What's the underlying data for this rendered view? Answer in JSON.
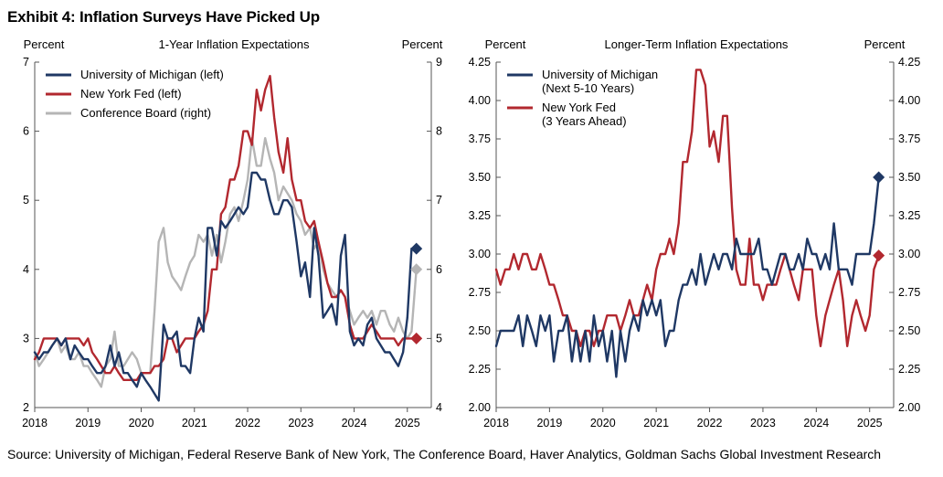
{
  "title": "Exhibit 4: Inflation Surveys Have Picked Up",
  "source": "Source: University of Michigan, Federal Reserve Bank of New York, The Conference Board, Haver Analytics, Goldman Sachs Global Investment Research",
  "chart_data": [
    {
      "type": "line",
      "title": "1-Year Inflation Expectations",
      "left_unit": "Percent",
      "right_unit": "Percent",
      "xlim": [
        2018,
        2025.45
      ],
      "x_ticks": [
        2018,
        2019,
        2020,
        2021,
        2022,
        2023,
        2024,
        2025
      ],
      "ylim_left": [
        2,
        7
      ],
      "ylim_right": [
        4,
        9
      ],
      "y_ticks_left": [
        2,
        3,
        4,
        5,
        6,
        7
      ],
      "y_ticks_right": [
        4,
        5,
        6,
        7,
        8,
        9
      ],
      "legend_position": "top-left",
      "colors": {
        "umich": "#1f3864",
        "nyfed": "#b2282f",
        "conf": "#b5b5b5"
      },
      "series": [
        {
          "name": "University of Michigan (left)",
          "axis": "left",
          "color": "#1f3864",
          "marker": {
            "x": 2025.17,
            "y": 4.3,
            "shape": "diamond"
          },
          "x": [
            2018.0,
            2018.08,
            2018.17,
            2018.25,
            2018.33,
            2018.42,
            2018.5,
            2018.58,
            2018.67,
            2018.75,
            2018.83,
            2018.92,
            2019.0,
            2019.08,
            2019.17,
            2019.25,
            2019.33,
            2019.42,
            2019.5,
            2019.58,
            2019.67,
            2019.75,
            2019.83,
            2019.92,
            2020.0,
            2020.08,
            2020.17,
            2020.25,
            2020.33,
            2020.42,
            2020.5,
            2020.58,
            2020.67,
            2020.75,
            2020.83,
            2020.92,
            2021.0,
            2021.08,
            2021.17,
            2021.25,
            2021.33,
            2021.42,
            2021.5,
            2021.58,
            2021.67,
            2021.75,
            2021.83,
            2021.92,
            2022.0,
            2022.08,
            2022.17,
            2022.25,
            2022.33,
            2022.42,
            2022.5,
            2022.58,
            2022.67,
            2022.75,
            2022.83,
            2022.92,
            2023.0,
            2023.08,
            2023.17,
            2023.25,
            2023.33,
            2023.42,
            2023.5,
            2023.58,
            2023.67,
            2023.75,
            2023.83,
            2023.92,
            2024.0,
            2024.08,
            2024.17,
            2024.25,
            2024.33,
            2024.42,
            2024.5,
            2024.58,
            2024.67,
            2024.75,
            2024.83,
            2024.92,
            2025.0,
            2025.08,
            2025.17
          ],
          "y": [
            2.8,
            2.7,
            2.8,
            2.8,
            2.9,
            3.0,
            2.9,
            3.0,
            2.7,
            2.9,
            2.8,
            2.7,
            2.7,
            2.6,
            2.5,
            2.5,
            2.6,
            2.9,
            2.6,
            2.8,
            2.5,
            2.5,
            2.4,
            2.3,
            2.5,
            2.4,
            2.3,
            2.2,
            2.1,
            3.2,
            3.0,
            3.0,
            3.1,
            2.6,
            2.6,
            2.5,
            3.0,
            3.3,
            3.1,
            4.6,
            4.6,
            4.2,
            4.7,
            4.6,
            4.7,
            4.8,
            4.9,
            4.8,
            4.9,
            5.4,
            5.4,
            5.3,
            5.3,
            5.0,
            4.8,
            4.8,
            5.0,
            5.0,
            4.9,
            4.4,
            3.9,
            4.1,
            3.6,
            4.6,
            4.2,
            3.3,
            3.4,
            3.5,
            3.2,
            4.2,
            4.5,
            3.1,
            2.9,
            3.0,
            2.9,
            3.2,
            3.3,
            3.0,
            2.9,
            2.8,
            2.8,
            2.7,
            2.6,
            2.8,
            3.3,
            4.3,
            4.3
          ]
        },
        {
          "name": "New York Fed (left)",
          "axis": "left",
          "color": "#b2282f",
          "marker": {
            "x": 2025.17,
            "y": 3.0,
            "shape": "diamond"
          },
          "x": [
            2018.0,
            2018.08,
            2018.17,
            2018.25,
            2018.33,
            2018.42,
            2018.5,
            2018.58,
            2018.67,
            2018.75,
            2018.83,
            2018.92,
            2019.0,
            2019.08,
            2019.17,
            2019.25,
            2019.33,
            2019.42,
            2019.5,
            2019.58,
            2019.67,
            2019.75,
            2019.83,
            2019.92,
            2020.0,
            2020.08,
            2020.17,
            2020.25,
            2020.33,
            2020.42,
            2020.5,
            2020.58,
            2020.67,
            2020.75,
            2020.83,
            2020.92,
            2021.0,
            2021.08,
            2021.17,
            2021.25,
            2021.33,
            2021.42,
            2021.5,
            2021.58,
            2021.67,
            2021.75,
            2021.83,
            2021.92,
            2022.0,
            2022.08,
            2022.17,
            2022.25,
            2022.33,
            2022.42,
            2022.5,
            2022.58,
            2022.67,
            2022.75,
            2022.83,
            2022.92,
            2023.0,
            2023.08,
            2023.17,
            2023.25,
            2023.33,
            2023.42,
            2023.5,
            2023.58,
            2023.67,
            2023.75,
            2023.83,
            2023.92,
            2024.0,
            2024.08,
            2024.17,
            2024.25,
            2024.33,
            2024.42,
            2024.5,
            2024.58,
            2024.67,
            2024.75,
            2024.83,
            2024.92,
            2025.0,
            2025.08,
            2025.17
          ],
          "y": [
            2.7,
            2.8,
            3.0,
            3.0,
            3.0,
            3.0,
            2.9,
            3.0,
            3.0,
            3.0,
            3.0,
            2.9,
            3.0,
            2.8,
            2.7,
            2.6,
            2.5,
            2.5,
            2.6,
            2.5,
            2.4,
            2.4,
            2.4,
            2.4,
            2.5,
            2.5,
            2.5,
            2.6,
            2.6,
            2.7,
            3.0,
            3.0,
            2.8,
            2.9,
            3.0,
            3.0,
            3.0,
            3.1,
            3.2,
            3.4,
            4.0,
            4.0,
            4.8,
            4.9,
            5.3,
            5.3,
            5.5,
            6.0,
            6.0,
            5.8,
            6.6,
            6.3,
            6.6,
            6.8,
            6.2,
            5.7,
            5.4,
            5.9,
            5.3,
            5.0,
            5.0,
            4.7,
            4.6,
            4.7,
            4.4,
            4.1,
            3.8,
            3.6,
            3.6,
            3.7,
            3.6,
            3.2,
            3.0,
            3.0,
            3.0,
            3.1,
            3.2,
            3.1,
            3.0,
            3.0,
            3.0,
            3.0,
            2.9,
            3.0,
            3.0,
            3.0,
            3.0
          ]
        },
        {
          "name": "Conference Board (right)",
          "axis": "right",
          "color": "#b5b5b5",
          "marker": {
            "x": 2025.17,
            "y": 6.0,
            "shape": "diamond"
          },
          "x": [
            2018.0,
            2018.08,
            2018.17,
            2018.25,
            2018.33,
            2018.42,
            2018.5,
            2018.58,
            2018.67,
            2018.75,
            2018.83,
            2018.92,
            2019.0,
            2019.08,
            2019.17,
            2019.25,
            2019.33,
            2019.42,
            2019.5,
            2019.58,
            2019.67,
            2019.75,
            2019.83,
            2019.92,
            2020.0,
            2020.08,
            2020.17,
            2020.25,
            2020.33,
            2020.42,
            2020.5,
            2020.58,
            2020.67,
            2020.75,
            2020.83,
            2020.92,
            2021.0,
            2021.08,
            2021.17,
            2021.25,
            2021.33,
            2021.42,
            2021.5,
            2021.58,
            2021.67,
            2021.75,
            2021.83,
            2021.92,
            2022.0,
            2022.08,
            2022.17,
            2022.25,
            2022.33,
            2022.42,
            2022.5,
            2022.58,
            2022.67,
            2022.75,
            2022.83,
            2022.92,
            2023.0,
            2023.08,
            2023.17,
            2023.25,
            2023.33,
            2023.42,
            2023.5,
            2023.58,
            2023.67,
            2023.75,
            2023.83,
            2023.92,
            2024.0,
            2024.08,
            2024.17,
            2024.25,
            2024.33,
            2024.42,
            2024.5,
            2024.58,
            2024.67,
            2024.75,
            2024.83,
            2024.92,
            2025.0,
            2025.08,
            2025.17
          ],
          "y": [
            4.8,
            4.6,
            4.7,
            4.8,
            4.9,
            5.0,
            4.8,
            4.9,
            4.7,
            4.7,
            4.8,
            4.6,
            4.6,
            4.5,
            4.4,
            4.3,
            4.6,
            4.7,
            5.1,
            4.6,
            4.6,
            4.7,
            4.8,
            4.7,
            4.5,
            4.5,
            4.5,
            5.4,
            6.4,
            6.6,
            6.1,
            5.9,
            5.8,
            5.7,
            5.9,
            6.1,
            6.2,
            6.5,
            6.4,
            6.5,
            6.2,
            6.5,
            6.1,
            6.4,
            6.8,
            6.9,
            6.7,
            7.0,
            7.3,
            7.9,
            7.5,
            7.5,
            7.9,
            7.6,
            7.4,
            7.0,
            7.2,
            7.1,
            7.0,
            6.8,
            6.7,
            6.5,
            6.6,
            6.3,
            6.4,
            6.0,
            5.8,
            5.7,
            5.6,
            5.7,
            5.6,
            5.4,
            5.2,
            5.3,
            5.4,
            5.3,
            5.4,
            5.2,
            5.4,
            5.4,
            5.2,
            5.1,
            5.3,
            5.1,
            5.0,
            5.1,
            6.0
          ]
        }
      ]
    },
    {
      "type": "line",
      "title": "Longer-Term Inflation Expectations",
      "left_unit": "Percent",
      "right_unit": "Percent",
      "xlim": [
        2018,
        2025.45
      ],
      "x_ticks": [
        2018,
        2019,
        2020,
        2021,
        2022,
        2023,
        2024,
        2025
      ],
      "ylim": [
        2.0,
        4.25
      ],
      "y_ticks": [
        "2.00",
        "2.25",
        "2.50",
        "2.75",
        "3.00",
        "3.25",
        "3.50",
        "3.75",
        "4.00",
        "4.25"
      ],
      "legend_position": "top-left",
      "colors": {
        "umich": "#1f3864",
        "nyfed": "#b2282f"
      },
      "series": [
        {
          "name": "University of Michigan\n(Next 5-10 Years)",
          "color": "#1f3864",
          "marker": {
            "x": 2025.17,
            "y": 3.5,
            "shape": "diamond"
          },
          "x": [
            2018.0,
            2018.08,
            2018.17,
            2018.25,
            2018.33,
            2018.42,
            2018.5,
            2018.58,
            2018.67,
            2018.75,
            2018.83,
            2018.92,
            2019.0,
            2019.08,
            2019.17,
            2019.25,
            2019.33,
            2019.42,
            2019.5,
            2019.58,
            2019.67,
            2019.75,
            2019.83,
            2019.92,
            2020.0,
            2020.08,
            2020.17,
            2020.25,
            2020.33,
            2020.42,
            2020.5,
            2020.58,
            2020.67,
            2020.75,
            2020.83,
            2020.92,
            2021.0,
            2021.08,
            2021.17,
            2021.25,
            2021.33,
            2021.42,
            2021.5,
            2021.58,
            2021.67,
            2021.75,
            2021.83,
            2021.92,
            2022.0,
            2022.08,
            2022.17,
            2022.25,
            2022.33,
            2022.42,
            2022.5,
            2022.58,
            2022.67,
            2022.75,
            2022.83,
            2022.92,
            2023.0,
            2023.08,
            2023.17,
            2023.25,
            2023.33,
            2023.42,
            2023.5,
            2023.58,
            2023.67,
            2023.75,
            2023.83,
            2023.92,
            2024.0,
            2024.08,
            2024.17,
            2024.25,
            2024.33,
            2024.42,
            2024.5,
            2024.58,
            2024.67,
            2024.75,
            2024.83,
            2024.92,
            2025.0,
            2025.08,
            2025.17
          ],
          "y": [
            2.4,
            2.5,
            2.5,
            2.5,
            2.5,
            2.6,
            2.4,
            2.6,
            2.5,
            2.4,
            2.6,
            2.5,
            2.6,
            2.3,
            2.5,
            2.5,
            2.6,
            2.3,
            2.5,
            2.3,
            2.5,
            2.3,
            2.6,
            2.4,
            2.5,
            2.3,
            2.5,
            2.2,
            2.5,
            2.3,
            2.5,
            2.6,
            2.5,
            2.7,
            2.6,
            2.7,
            2.6,
            2.7,
            2.4,
            2.5,
            2.5,
            2.7,
            2.8,
            2.8,
            2.9,
            2.8,
            3.0,
            2.8,
            2.9,
            3.0,
            2.9,
            3.0,
            3.0,
            2.9,
            3.1,
            3.0,
            3.0,
            3.0,
            3.0,
            3.1,
            2.9,
            2.9,
            2.8,
            2.9,
            3.0,
            3.0,
            2.9,
            2.9,
            3.0,
            2.9,
            3.1,
            3.0,
            3.0,
            2.9,
            3.0,
            2.9,
            3.2,
            2.9,
            2.9,
            2.9,
            2.8,
            3.0,
            3.0,
            3.0,
            3.0,
            3.2,
            3.5
          ]
        },
        {
          "name": "New York Fed\n(3 Years Ahead)",
          "color": "#b2282f",
          "marker": {
            "x": 2025.17,
            "y": 2.99,
            "shape": "diamond"
          },
          "x": [
            2018.0,
            2018.08,
            2018.17,
            2018.25,
            2018.33,
            2018.42,
            2018.5,
            2018.58,
            2018.67,
            2018.75,
            2018.83,
            2018.92,
            2019.0,
            2019.08,
            2019.17,
            2019.25,
            2019.33,
            2019.42,
            2019.5,
            2019.58,
            2019.67,
            2019.75,
            2019.83,
            2019.92,
            2020.0,
            2020.08,
            2020.17,
            2020.25,
            2020.33,
            2020.42,
            2020.5,
            2020.58,
            2020.67,
            2020.75,
            2020.83,
            2020.92,
            2021.0,
            2021.08,
            2021.17,
            2021.25,
            2021.33,
            2021.42,
            2021.5,
            2021.58,
            2021.67,
            2021.75,
            2021.83,
            2021.92,
            2022.0,
            2022.08,
            2022.17,
            2022.25,
            2022.33,
            2022.42,
            2022.5,
            2022.58,
            2022.67,
            2022.75,
            2022.83,
            2022.92,
            2023.0,
            2023.08,
            2023.17,
            2023.25,
            2023.33,
            2023.42,
            2023.5,
            2023.58,
            2023.67,
            2023.75,
            2023.83,
            2023.92,
            2024.0,
            2024.08,
            2024.17,
            2024.25,
            2024.33,
            2024.42,
            2024.5,
            2024.58,
            2024.67,
            2024.75,
            2024.83,
            2024.92,
            2025.0,
            2025.08,
            2025.17
          ],
          "y": [
            2.9,
            2.8,
            2.9,
            2.9,
            3.0,
            2.9,
            3.0,
            3.0,
            2.9,
            2.9,
            3.0,
            2.9,
            2.8,
            2.8,
            2.7,
            2.6,
            2.6,
            2.5,
            2.5,
            2.4,
            2.5,
            2.5,
            2.4,
            2.5,
            2.5,
            2.6,
            2.6,
            2.6,
            2.5,
            2.6,
            2.7,
            2.6,
            2.6,
            2.7,
            2.8,
            2.7,
            2.9,
            3.0,
            3.0,
            3.1,
            3.0,
            3.2,
            3.6,
            3.6,
            3.8,
            4.2,
            4.2,
            4.1,
            3.7,
            3.8,
            3.6,
            3.9,
            3.9,
            3.3,
            2.9,
            2.8,
            2.8,
            3.1,
            2.8,
            2.8,
            2.7,
            2.8,
            2.8,
            2.8,
            2.9,
            3.0,
            2.9,
            2.8,
            2.7,
            2.9,
            2.9,
            2.9,
            2.6,
            2.4,
            2.6,
            2.7,
            2.8,
            2.9,
            2.7,
            2.4,
            2.6,
            2.7,
            2.6,
            2.5,
            2.6,
            2.9,
            2.99
          ]
        }
      ]
    }
  ]
}
